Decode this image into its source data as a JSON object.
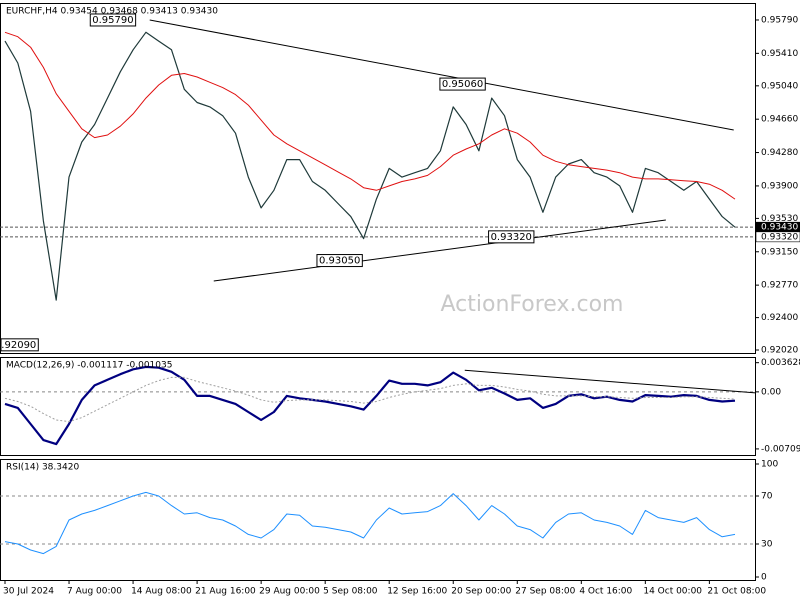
{
  "chart_data": [
    {
      "type": "line",
      "title": "EURCHF,H4 0.93454 0.93468 0.93413 0.93430",
      "watermark": "ActionForex.com",
      "categories": [
        "30 Jul 2024",
        null,
        null,
        null,
        null,
        "7 Aug 00:00",
        null,
        null,
        null,
        null,
        "14 Aug 08:00",
        null,
        null,
        null,
        null,
        "21 Aug 16:00",
        null,
        null,
        null,
        null,
        "29 Aug 00:00",
        null,
        null,
        null,
        null,
        "5 Sep 08:00",
        null,
        null,
        null,
        null,
        "12 Sep 16:00",
        null,
        null,
        null,
        null,
        "20 Sep 00:00",
        null,
        null,
        null,
        null,
        "27 Sep 08:00",
        null,
        null,
        null,
        null,
        "4 Oct 16:00",
        null,
        null,
        null,
        null,
        "14 Oct 00:00",
        null,
        null,
        null,
        null,
        "21 Oct 08:00",
        null,
        null
      ],
      "series": [
        {
          "color": "#1f3a3a",
          "width": 1.2,
          "values": [
            0.9555,
            0.953,
            0.9475,
            0.935,
            0.926,
            0.94,
            0.944,
            0.946,
            0.949,
            0.952,
            0.9545,
            0.9565,
            0.9555,
            0.9545,
            0.95,
            0.9485,
            0.948,
            0.947,
            0.945,
            0.94,
            0.9365,
            0.9385,
            0.942,
            0.942,
            0.9395,
            0.9385,
            0.937,
            0.9355,
            0.933,
            0.9375,
            0.941,
            0.94,
            0.9405,
            0.941,
            0.943,
            0.948,
            0.946,
            0.943,
            0.949,
            0.947,
            0.942,
            0.94,
            0.936,
            0.94,
            0.9415,
            0.942,
            0.9405,
            0.94,
            0.939,
            0.936,
            0.941,
            0.9405,
            0.9395,
            0.9385,
            0.9395,
            0.9375,
            0.9355,
            0.9343
          ]
        },
        {
          "color": "#e01010",
          "width": 1,
          "values": [
            0.9565,
            0.956,
            0.9548,
            0.9525,
            0.9495,
            0.9475,
            0.9455,
            0.9445,
            0.9448,
            0.9458,
            0.9472,
            0.949,
            0.9505,
            0.9516,
            0.9518,
            0.9514,
            0.9508,
            0.9502,
            0.9494,
            0.9482,
            0.9465,
            0.9448,
            0.9438,
            0.943,
            0.9422,
            0.9414,
            0.9406,
            0.9398,
            0.9388,
            0.9385,
            0.939,
            0.9395,
            0.9398,
            0.9402,
            0.9412,
            0.9425,
            0.9432,
            0.9438,
            0.9448,
            0.9455,
            0.945,
            0.944,
            0.9425,
            0.9418,
            0.9414,
            0.9412,
            0.941,
            0.9408,
            0.9405,
            0.94,
            0.9398,
            0.9398,
            0.9397,
            0.9396,
            0.9395,
            0.9392,
            0.9385,
            0.9375
          ]
        }
      ],
      "ylim": [
        0.91997,
        0.95972
      ],
      "yticks": [
        {
          "value": 0.9579,
          "label": "0.95790"
        },
        {
          "value": 0.9541,
          "label": "0.95410"
        },
        {
          "value": 0.9504,
          "label": "0.95040"
        },
        {
          "value": 0.9466,
          "label": "0.94660"
        },
        {
          "value": 0.9428,
          "label": "0.94280"
        },
        {
          "value": 0.939,
          "label": "0.93900"
        },
        {
          "value": 0.9353,
          "label": "0.93530"
        },
        {
          "value": 0.9315,
          "label": "0.93150"
        },
        {
          "value": 0.9277,
          "label": "0.92770"
        },
        {
          "value": 0.924,
          "label": "0.92400"
        },
        {
          "value": 0.9202,
          "label": "0.92020"
        }
      ],
      "price_lines": [
        {
          "value": 0.9343,
          "label": "0.93430",
          "current": true
        },
        {
          "value": 0.9332,
          "label": "0.93320",
          "current": false
        }
      ],
      "annotations": [
        {
          "at": 10.2,
          "value": 0.9579,
          "label": "0.95790"
        },
        {
          "at": 37.5,
          "value": 0.9506,
          "label": "0.95060"
        },
        {
          "at": 27.9,
          "value": 0.9305,
          "label": "0.93050"
        },
        {
          "at": 41.3,
          "value": 0.9332,
          "label": "0.93320"
        },
        {
          "at": 2.6,
          "value": 0.9209,
          "label": ".92090"
        }
      ],
      "trendlines": [
        {
          "start": [
            11.3,
            0.9579
          ],
          "end": [
            56.9,
            0.94537
          ]
        },
        {
          "start": [
            16.3,
            0.92817
          ],
          "end": [
            51.6,
            0.93512
          ]
        }
      ]
    },
    {
      "type": "line",
      "title": "MACD(12,26,9) -0.001117 -0.001035",
      "series": [
        {
          "color": "#000080",
          "width": 2.2,
          "values": [
            -0.0015,
            -0.002,
            -0.004,
            -0.006,
            -0.0065,
            -0.004,
            -0.001,
            0.0008,
            0.0015,
            0.0022,
            0.0028,
            0.0031,
            0.003,
            0.0025,
            0.0015,
            -0.0005,
            -0.0005,
            -0.001,
            -0.0015,
            -0.0025,
            -0.0035,
            -0.0025,
            -0.0005,
            -0.0008,
            -0.001,
            -0.0012,
            -0.0015,
            -0.0018,
            -0.0022,
            -0.0005,
            0.0014,
            0.001,
            0.001,
            0.0008,
            0.0012,
            0.0024,
            0.0015,
            0.0002,
            0.0005,
            -0.0002,
            -0.001,
            -0.0008,
            -0.002,
            -0.0015,
            -0.0005,
            -0.0003,
            -0.0008,
            -0.0006,
            -0.001,
            -0.0012,
            -0.0004,
            -0.0005,
            -0.0006,
            -0.0004,
            -0.0005,
            -0.001,
            -0.0012,
            -0.0011
          ]
        },
        {
          "color": "#a0a0a0",
          "width": 1,
          "style": "dotted",
          "values": [
            -0.0008,
            -0.0012,
            -0.0018,
            -0.0027,
            -0.0035,
            -0.0037,
            -0.0032,
            -0.0024,
            -0.0016,
            -0.0008,
            0,
            0.0008,
            0.0014,
            0.0018,
            0.0018,
            0.0013,
            0.0009,
            0.0005,
            0.0001,
            -0.0004,
            -0.001,
            -0.0013,
            -0.0011,
            -0.001,
            -0.001,
            -0.001,
            -0.0011,
            -0.0012,
            -0.0014,
            -0.0012,
            -0.0007,
            -0.0003,
            0,
            0.0002,
            0.0004,
            0.0008,
            0.001,
            0.0008,
            0.0008,
            0.0006,
            0.0003,
            0.0001,
            -0.0003,
            -0.0005,
            -0.0005,
            -0.0005,
            -0.0006,
            -0.0006,
            -0.0007,
            -0.0008,
            -0.0007,
            -0.0007,
            -0.0007,
            -0.0006,
            -0.0006,
            -0.0007,
            -0.0008,
            -0.0009
          ]
        }
      ],
      "ylim": [
        -0.00785,
        0.00421
      ],
      "yticks": [
        0.003628,
        {
          "value": 0,
          "label": "0.00"
        },
        -0.007093
      ],
      "zero_line": true,
      "trendlines": [
        {
          "start": [
            35.9,
            0.00268
          ],
          "end": [
            58.6,
            -0.00012
          ]
        }
      ]
    },
    {
      "type": "line",
      "title": "RSI(14) 38.3420",
      "series": [
        {
          "color": "#1e90ff",
          "width": 1,
          "values": [
            32,
            30,
            25,
            22,
            28,
            50,
            55,
            58,
            62,
            66,
            70,
            73,
            70,
            62,
            55,
            56,
            52,
            50,
            45,
            38,
            35,
            42,
            55,
            54,
            45,
            44,
            42,
            40,
            35,
            50,
            60,
            55,
            56,
            57,
            62,
            72,
            62,
            50,
            62,
            55,
            45,
            42,
            35,
            48,
            55,
            56,
            50,
            48,
            45,
            38,
            58,
            52,
            50,
            48,
            52,
            42,
            36,
            38
          ]
        }
      ],
      "ylim": [
        0,
        100
      ],
      "yticks": [
        100,
        70,
        30,
        0
      ],
      "levels": [
        70,
        30
      ]
    }
  ]
}
